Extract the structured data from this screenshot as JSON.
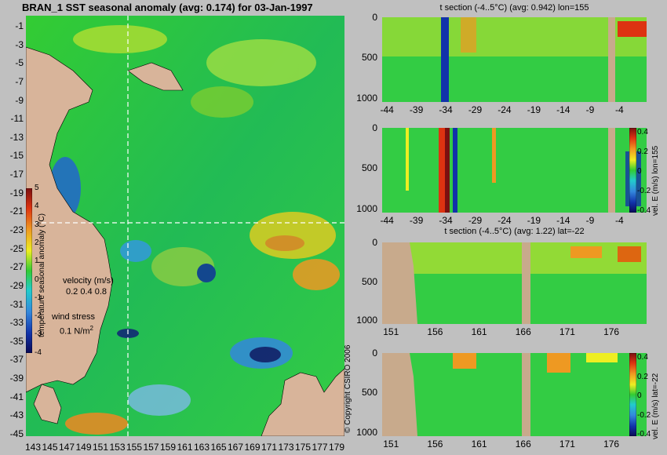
{
  "chart_data": [
    {
      "type": "heatmap",
      "title": "BRAN_1 SST seasonal anomaly (avg: 0.174) for 03-Jan-1997",
      "x_ticks": [
        "143",
        "145",
        "147",
        "149",
        "151",
        "153",
        "155",
        "157",
        "159",
        "161",
        "163",
        "165",
        "167",
        "169",
        "171",
        "173",
        "175",
        "177",
        "179"
      ],
      "y_ticks": [
        "-1",
        "-3",
        "-5",
        "-7",
        "-9",
        "-11",
        "-13",
        "-15",
        "-17",
        "-19",
        "-21",
        "-23",
        "-25",
        "-27",
        "-29",
        "-31",
        "-33",
        "-35",
        "-37",
        "-39",
        "-41",
        "-43",
        "-45"
      ],
      "xlim": [
        142,
        180
      ],
      "ylim": [
        -45,
        1
      ],
      "colorbar": {
        "label": "temperature seasonal anomaly (°C)",
        "ticks": [
          "5",
          "4",
          "3",
          "2",
          "1",
          "0",
          "-1",
          "-2",
          "-3",
          "-4"
        ],
        "range": [
          -4,
          5
        ]
      },
      "legend": {
        "velocity_label": "velocity (m/s)",
        "velocity_values": "0.2 0.4 0.8",
        "wind_label": "wind stress",
        "wind_value": "0.1 N/m",
        "wind_sup": "2"
      },
      "section_lines": {
        "lon": 155,
        "lat": -22
      }
    },
    {
      "type": "heatmap",
      "title": "t section (-4..5°C) (avg: 0.942) lon=155",
      "x_ticks": [
        "-44",
        "-39",
        "-34",
        "-29",
        "-24",
        "-19",
        "-14",
        "-9",
        "-4"
      ],
      "y_ticks": [
        "0",
        "500",
        "1000"
      ],
      "xlim": [
        -45,
        0
      ],
      "ylim": [
        1050,
        0
      ]
    },
    {
      "type": "heatmap",
      "title": "",
      "x_ticks": [
        "-44",
        "-39",
        "-34",
        "-29",
        "-24",
        "-19",
        "-14",
        "-9",
        "-4"
      ],
      "y_ticks": [
        "0",
        "500",
        "1000"
      ],
      "xlim": [
        -45,
        0
      ],
      "ylim": [
        1050,
        0
      ],
      "colorbar": {
        "ticks": [
          "0.4",
          "0.2",
          "0",
          "-0.2",
          "-0.4"
        ],
        "label": "vel. E (m/s) lon=155"
      }
    },
    {
      "type": "heatmap",
      "title": "t section (-4..5°C) (avg: 1.22) lat=-22",
      "x_ticks": [
        "151",
        "156",
        "161",
        "166",
        "171",
        "176"
      ],
      "y_ticks": [
        "0",
        "500",
        "1000"
      ],
      "xlim": [
        150,
        180
      ],
      "ylim": [
        1050,
        0
      ]
    },
    {
      "type": "heatmap",
      "title": "",
      "x_ticks": [
        "151",
        "156",
        "161",
        "166",
        "171",
        "176"
      ],
      "y_ticks": [
        "0",
        "500",
        "1000"
      ],
      "xlim": [
        150,
        180
      ],
      "ylim": [
        1050,
        0
      ],
      "colorbar": {
        "ticks": [
          "0.4",
          "0.2",
          "0",
          "-0.2",
          "-0.4"
        ],
        "label": "vel. E (m/s) lat=-22"
      }
    }
  ],
  "copyright": "© Copyright CSIRO 2006",
  "colors": {
    "land": "#d8b49a",
    "mask": "#c8aa8c",
    "ocean_mid": "#22cc33",
    "background": "#c0c0c0"
  }
}
